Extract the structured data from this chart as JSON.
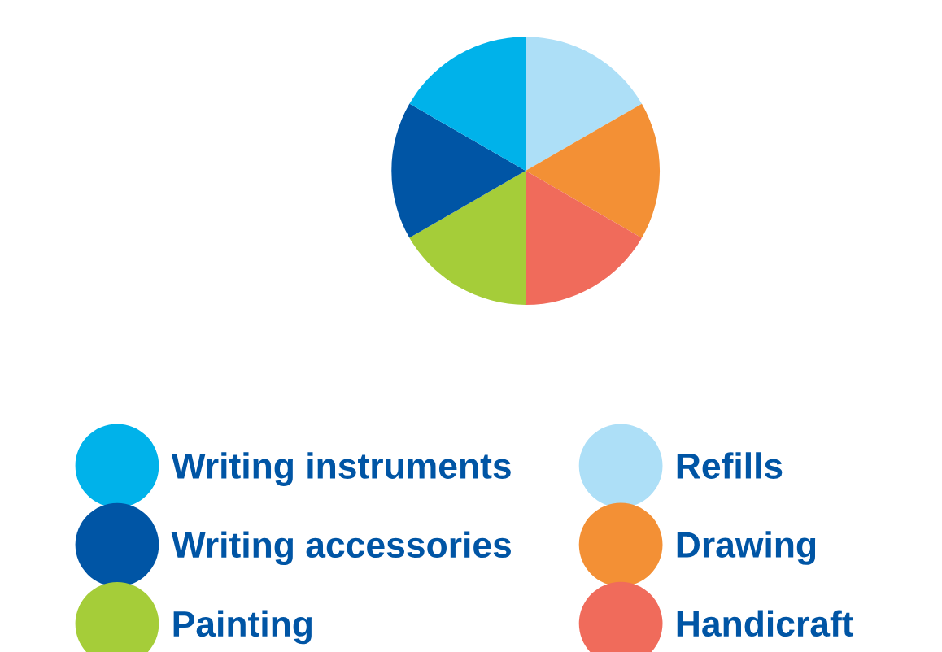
{
  "chart_data": {
    "type": "pie",
    "categories": [
      "Refills",
      "Drawing",
      "Handicraft",
      "Painting",
      "Writing accessories",
      "Writing instruments"
    ],
    "values": [
      16.67,
      16.67,
      16.67,
      16.67,
      16.66,
      16.66
    ],
    "colors": [
      "#addff7",
      "#f39035",
      "#f06b5b",
      "#a5cd39",
      "#0055a5",
      "#00b2ea"
    ],
    "legend": "bottom"
  }
}
